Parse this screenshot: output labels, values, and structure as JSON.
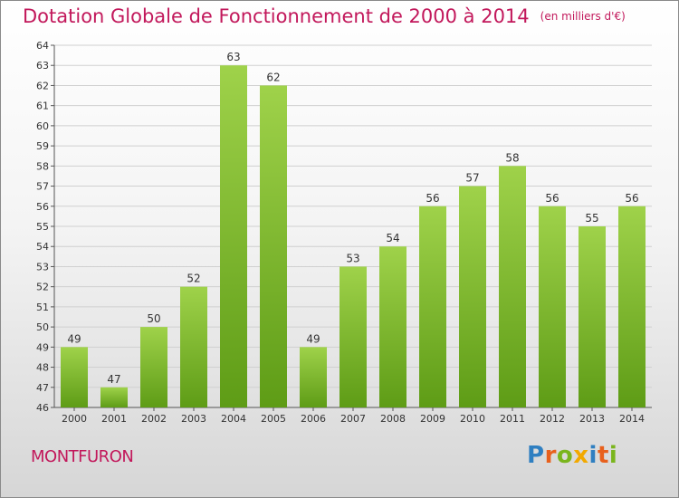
{
  "title": {
    "main": "Dotation Globale de Fonctionnement de 2000 à 2014",
    "unit": "(en milliers d'€)"
  },
  "commune": "MONTFURON",
  "logo": {
    "text": "Proxiti",
    "letters": [
      {
        "ch": "P",
        "color": "#2f7fc1"
      },
      {
        "ch": "r",
        "color": "#e8601c"
      },
      {
        "ch": "o",
        "color": "#7ab51d"
      },
      {
        "ch": "x",
        "color": "#f2a900"
      },
      {
        "ch": "i",
        "color": "#2f7fc1"
      },
      {
        "ch": "t",
        "color": "#e8601c"
      },
      {
        "ch": "i",
        "color": "#7ab51d"
      }
    ]
  },
  "colors": {
    "title": "#c2185b",
    "bar_top": "#9fd24a",
    "bar_bottom": "#5e9c16",
    "grid": "#d0d0d0",
    "axis": "#555555"
  },
  "chart_data": {
    "type": "bar",
    "categories": [
      "2000",
      "2001",
      "2002",
      "2003",
      "2004",
      "2005",
      "2006",
      "2007",
      "2008",
      "2009",
      "2010",
      "2011",
      "2012",
      "2013",
      "2014"
    ],
    "values": [
      49,
      47,
      50,
      52,
      63,
      62,
      49,
      53,
      54,
      56,
      57,
      58,
      56,
      55,
      56
    ],
    "title": "Dotation Globale de Fonctionnement de 2000 à 2014",
    "xlabel": "",
    "ylabel": "",
    "ylim": [
      46,
      64
    ],
    "yticks": [
      46,
      47,
      48,
      49,
      50,
      51,
      52,
      53,
      54,
      55,
      56,
      57,
      58,
      59,
      60,
      61,
      62,
      63,
      64
    ],
    "grid": true,
    "data_labels": true
  }
}
